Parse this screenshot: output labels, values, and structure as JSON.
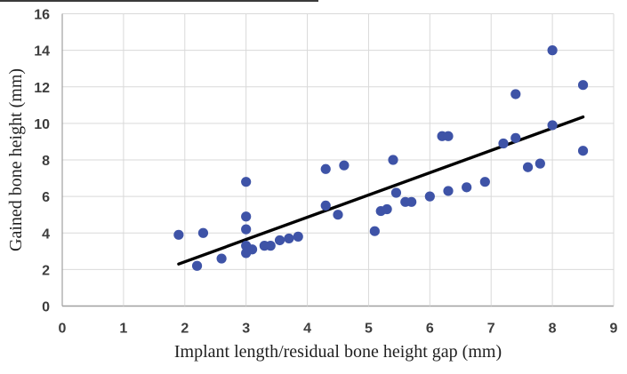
{
  "figure": {
    "background": "#ffffff",
    "crop_artifact_color": "#3a3a3a"
  },
  "chart_data": {
    "type": "scatter",
    "title": "",
    "xlabel": "Implant length/residual bone height gap (mm)",
    "ylabel": "Gained bone height (mm)",
    "xlim": [
      0,
      9
    ],
    "ylim": [
      0,
      16
    ],
    "x_ticks": [
      0,
      1,
      2,
      3,
      4,
      5,
      6,
      7,
      8,
      9
    ],
    "y_ticks": [
      0,
      2,
      4,
      6,
      8,
      10,
      12,
      14,
      16
    ],
    "grid": true,
    "legend": false,
    "point_color": "#3e53a7",
    "trend_color": "#000000",
    "grid_color": "#d9d9d9",
    "axis_color": "#a0a0a0",
    "tick_label_color": "#3d3d3d",
    "points": [
      [
        1.9,
        3.9
      ],
      [
        2.2,
        2.2
      ],
      [
        2.3,
        4.0
      ],
      [
        2.6,
        2.6
      ],
      [
        3.0,
        6.8
      ],
      [
        3.0,
        4.9
      ],
      [
        3.0,
        4.2
      ],
      [
        3.0,
        3.3
      ],
      [
        3.0,
        2.9
      ],
      [
        3.1,
        3.1
      ],
      [
        3.3,
        3.3
      ],
      [
        3.4,
        3.3
      ],
      [
        3.55,
        3.6
      ],
      [
        3.7,
        3.7
      ],
      [
        3.85,
        3.8
      ],
      [
        4.3,
        7.5
      ],
      [
        4.3,
        5.5
      ],
      [
        4.5,
        5.0
      ],
      [
        4.6,
        7.7
      ],
      [
        5.1,
        4.1
      ],
      [
        5.2,
        5.2
      ],
      [
        5.3,
        5.3
      ],
      [
        5.4,
        8.0
      ],
      [
        5.45,
        6.2
      ],
      [
        5.6,
        5.7
      ],
      [
        5.7,
        5.7
      ],
      [
        6.0,
        6.0
      ],
      [
        6.2,
        9.3
      ],
      [
        6.3,
        9.3
      ],
      [
        6.3,
        6.3
      ],
      [
        6.6,
        6.5
      ],
      [
        6.9,
        6.8
      ],
      [
        7.2,
        8.9
      ],
      [
        7.4,
        9.2
      ],
      [
        7.4,
        11.6
      ],
      [
        7.6,
        7.6
      ],
      [
        7.8,
        7.8
      ],
      [
        8.0,
        14.0
      ],
      [
        8.0,
        9.9
      ],
      [
        8.5,
        12.1
      ],
      [
        8.5,
        8.5
      ]
    ],
    "trendline": {
      "type": "linear",
      "x1": 1.9,
      "y1": 2.3,
      "x2": 8.5,
      "y2": 10.35
    }
  }
}
